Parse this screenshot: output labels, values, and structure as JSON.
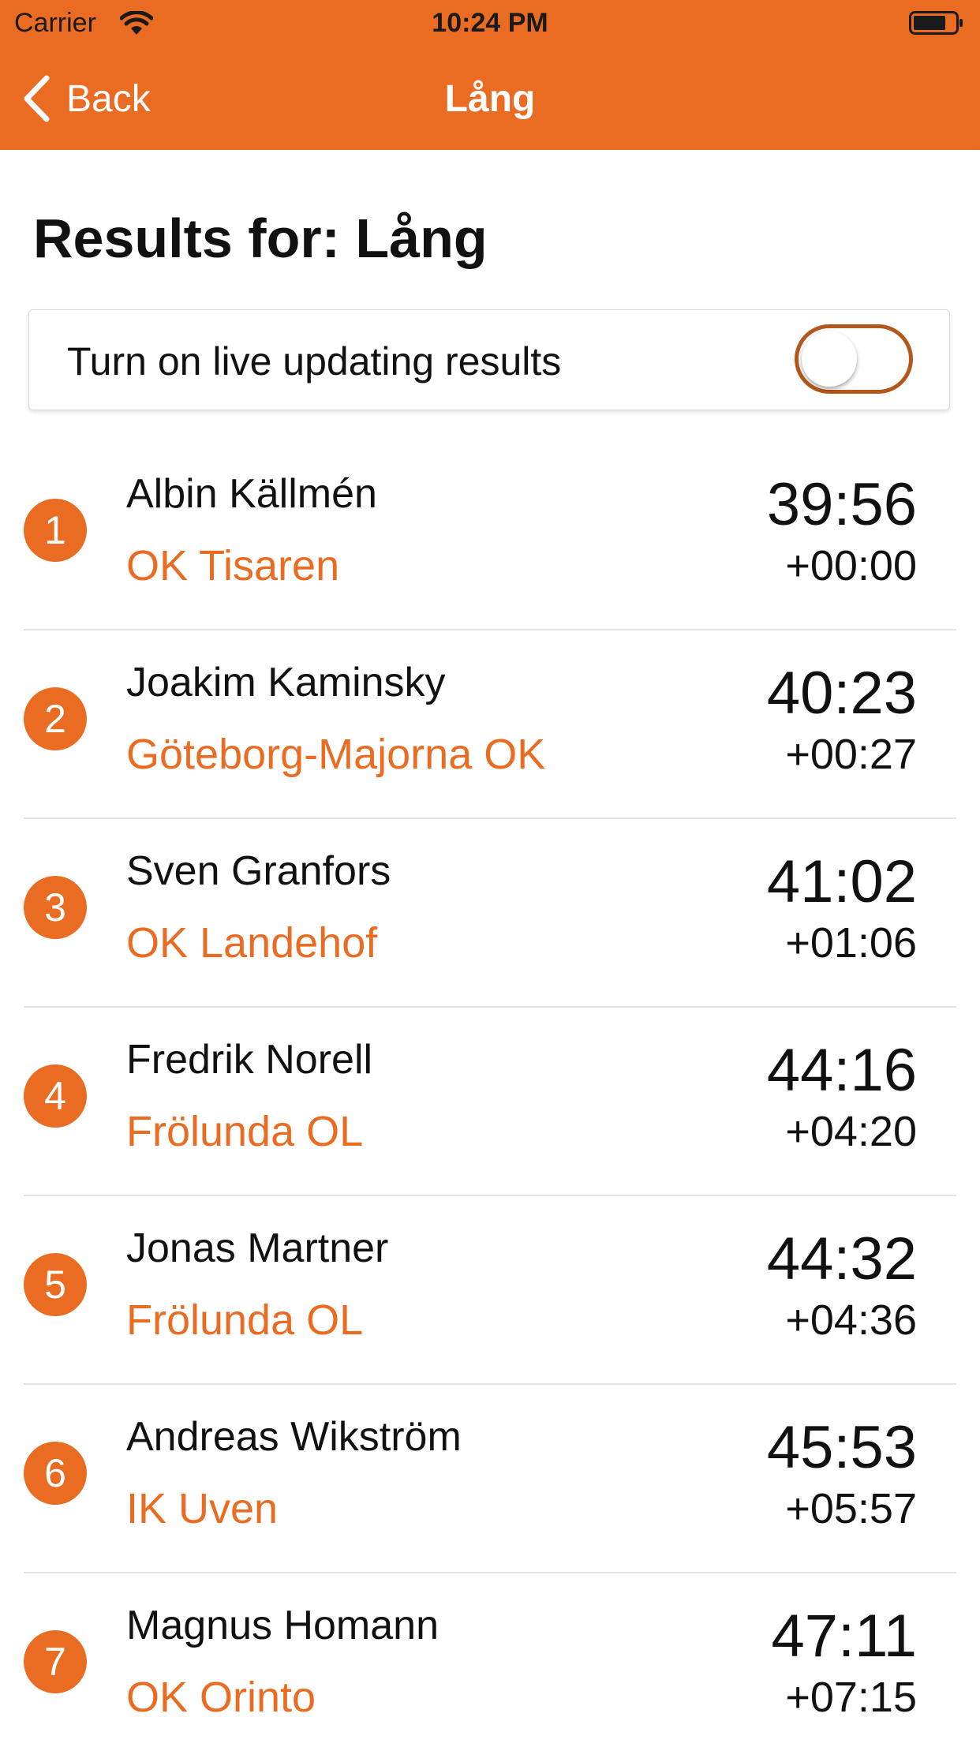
{
  "status_bar": {
    "carrier": "Carrier",
    "time": "10:24 PM",
    "icons": [
      "wifi-icon",
      "battery-icon"
    ]
  },
  "nav": {
    "back_label": "Back",
    "title": "Lång",
    "back_icon": "chevron-left-icon",
    "bar_color": "#e96c22"
  },
  "heading": "Results for: Lång",
  "live": {
    "label": "Turn on live updating results",
    "toggle_on": false,
    "toggle_border_color": "#b4571c"
  },
  "accent_color": "#e96c22",
  "results": [
    {
      "rank": "1",
      "name": "Albin Källmén",
      "club": "OK Tisaren",
      "time": "39:56",
      "diff": "+00:00"
    },
    {
      "rank": "2",
      "name": "Joakim Kaminsky",
      "club": "Göteborg-Majorna OK",
      "time": "40:23",
      "diff": "+00:27"
    },
    {
      "rank": "3",
      "name": "Sven Granfors",
      "club": "OK Landehof",
      "time": "41:02",
      "diff": "+01:06"
    },
    {
      "rank": "4",
      "name": "Fredrik Norell",
      "club": "Frölunda OL",
      "time": "44:16",
      "diff": "+04:20"
    },
    {
      "rank": "5",
      "name": "Jonas Martner",
      "club": "Frölunda OL",
      "time": "44:32",
      "diff": "+04:36"
    },
    {
      "rank": "6",
      "name": "Andreas Wikström",
      "club": "IK Uven",
      "time": "45:53",
      "diff": "+05:57"
    },
    {
      "rank": "7",
      "name": "Magnus Homann",
      "club": "OK Orinto",
      "time": "47:11",
      "diff": "+07:15"
    }
  ]
}
